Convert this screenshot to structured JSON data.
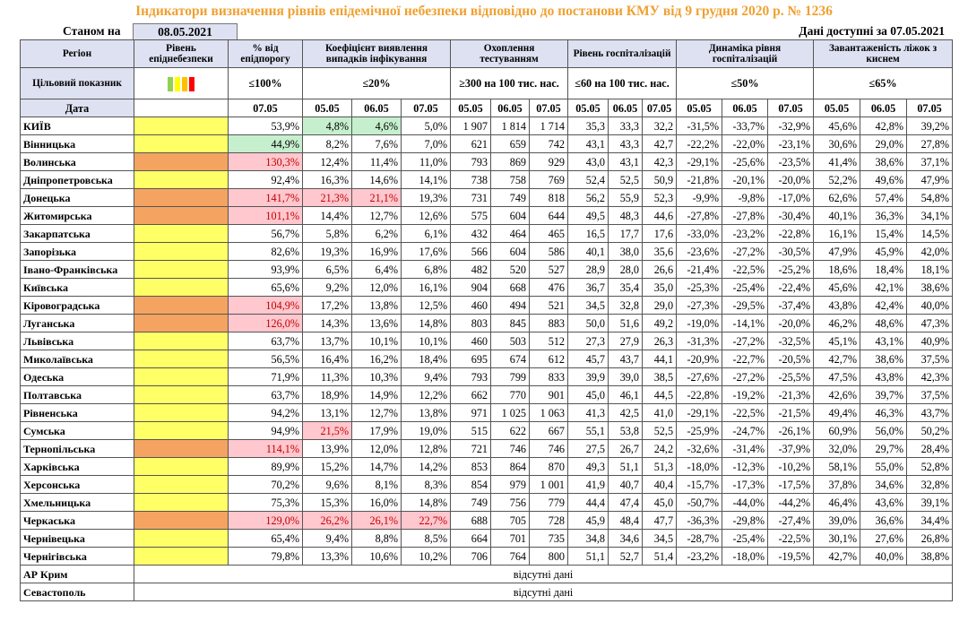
{
  "title": "Індикатори визначення рівнів епідемічної небезпеки відповідно до постанови КМУ від 9 грудня 2020 р. № 1236",
  "status_label": "Станом на",
  "status_date": "08.05.2021",
  "data_available": "Дані доступні за 07.05.2021",
  "headers": {
    "region": "Регіон",
    "level": "Рівень епіднебезпеки",
    "threshold": "% від епідпорогу",
    "detection": "Коефіцієнт виявлення випадків інфікування",
    "testing": "Охоплення тестуванням",
    "hosp": "Рівень госпіталізацій",
    "dynamics": "Динаміка рівня госпіталізацій",
    "beds": "Завантаженість ліжок з киснем"
  },
  "target": {
    "label": "Цільовий показник",
    "threshold": "≤100%",
    "detection": "≤20%",
    "testing": "≥300 на 100 тис. нас.",
    "hosp": "≤60 на 100 тис. нас.",
    "dynamics": "≤50%",
    "beds": "≤65%"
  },
  "swatch_colors": [
    "#92d050",
    "#ffff00",
    "#ffc000",
    "#ff0000"
  ],
  "dates": {
    "label": "Дата",
    "threshold": "07.05",
    "set": [
      "05.05",
      "06.05",
      "07.05"
    ]
  },
  "level_colors": {
    "yellow": "#ffff66",
    "orange": "#f4a460"
  },
  "regions": [
    {
      "name": "КИЇВ",
      "level": "yellow",
      "pct": "53,9%",
      "det": [
        "4,8%",
        "4,6%",
        "5,0%"
      ],
      "test": [
        "1 907",
        "1 814",
        "1 714"
      ],
      "hosp": [
        "35,3",
        "33,3",
        "32,2"
      ],
      "dyn": [
        "-31,5%",
        "-33,7%",
        "-32,9%"
      ],
      "beds": [
        "45,6%",
        "42,8%",
        "39,2%"
      ],
      "hl": {
        "det0": "good",
        "det1": "good"
      }
    },
    {
      "name": "Вінницька",
      "level": "yellow",
      "pct": "44,9%",
      "det": [
        "8,2%",
        "7,6%",
        "7,0%"
      ],
      "test": [
        "621",
        "659",
        "742"
      ],
      "hosp": [
        "43,1",
        "43,3",
        "42,7"
      ],
      "dyn": [
        "-22,2%",
        "-22,0%",
        "-23,1%"
      ],
      "beds": [
        "30,6%",
        "29,0%",
        "27,8%"
      ],
      "hl": {
        "pct": "good"
      }
    },
    {
      "name": "Волинська",
      "level": "orange",
      "pct": "130,3%",
      "det": [
        "12,4%",
        "11,4%",
        "11,0%"
      ],
      "test": [
        "793",
        "869",
        "929"
      ],
      "hosp": [
        "43,0",
        "43,1",
        "42,3"
      ],
      "dyn": [
        "-29,1%",
        "-25,6%",
        "-23,5%"
      ],
      "beds": [
        "41,4%",
        "38,6%",
        "37,1%"
      ],
      "hl": {
        "pct": "bad"
      }
    },
    {
      "name": "Дніпропетровська",
      "level": "yellow",
      "pct": "92,4%",
      "det": [
        "16,3%",
        "14,6%",
        "14,1%"
      ],
      "test": [
        "738",
        "758",
        "769"
      ],
      "hosp": [
        "52,4",
        "52,5",
        "50,9"
      ],
      "dyn": [
        "-21,8%",
        "-20,1%",
        "-20,0%"
      ],
      "beds": [
        "52,2%",
        "49,6%",
        "47,9%"
      ],
      "hl": {}
    },
    {
      "name": "Донецька",
      "level": "orange",
      "pct": "141,7%",
      "det": [
        "21,3%",
        "21,1%",
        "19,3%"
      ],
      "test": [
        "731",
        "749",
        "818"
      ],
      "hosp": [
        "56,2",
        "55,9",
        "52,3"
      ],
      "dyn": [
        "-9,9%",
        "-9,8%",
        "-17,0%"
      ],
      "beds": [
        "62,6%",
        "57,4%",
        "54,8%"
      ],
      "hl": {
        "pct": "bad",
        "det0": "bad",
        "det1": "bad"
      }
    },
    {
      "name": "Житомирська",
      "level": "orange",
      "pct": "101,1%",
      "det": [
        "14,4%",
        "12,7%",
        "12,6%"
      ],
      "test": [
        "575",
        "604",
        "644"
      ],
      "hosp": [
        "49,5",
        "48,3",
        "44,6"
      ],
      "dyn": [
        "-27,8%",
        "-27,8%",
        "-30,4%"
      ],
      "beds": [
        "40,1%",
        "36,3%",
        "34,1%"
      ],
      "hl": {
        "pct": "bad"
      }
    },
    {
      "name": "Закарпатська",
      "level": "yellow",
      "pct": "56,7%",
      "det": [
        "5,8%",
        "6,2%",
        "6,1%"
      ],
      "test": [
        "432",
        "464",
        "465"
      ],
      "hosp": [
        "16,5",
        "17,7",
        "17,6"
      ],
      "dyn": [
        "-33,0%",
        "-23,2%",
        "-22,8%"
      ],
      "beds": [
        "16,1%",
        "15,4%",
        "14,5%"
      ],
      "hl": {}
    },
    {
      "name": "Запорізька",
      "level": "yellow",
      "pct": "82,6%",
      "det": [
        "19,3%",
        "16,9%",
        "17,6%"
      ],
      "test": [
        "566",
        "604",
        "586"
      ],
      "hosp": [
        "40,1",
        "38,0",
        "35,6"
      ],
      "dyn": [
        "-23,6%",
        "-27,2%",
        "-30,5%"
      ],
      "beds": [
        "47,9%",
        "45,9%",
        "42,0%"
      ],
      "hl": {}
    },
    {
      "name": "Івано-Франківська",
      "level": "yellow",
      "pct": "93,9%",
      "det": [
        "6,5%",
        "6,4%",
        "6,8%"
      ],
      "test": [
        "482",
        "520",
        "527"
      ],
      "hosp": [
        "28,9",
        "28,0",
        "26,6"
      ],
      "dyn": [
        "-21,4%",
        "-22,5%",
        "-25,2%"
      ],
      "beds": [
        "18,6%",
        "18,4%",
        "18,1%"
      ],
      "hl": {}
    },
    {
      "name": "Київська",
      "level": "yellow",
      "pct": "65,6%",
      "det": [
        "9,2%",
        "12,0%",
        "16,1%"
      ],
      "test": [
        "904",
        "668",
        "476"
      ],
      "hosp": [
        "36,7",
        "35,4",
        "35,0"
      ],
      "dyn": [
        "-25,3%",
        "-25,4%",
        "-22,4%"
      ],
      "beds": [
        "45,6%",
        "42,1%",
        "38,6%"
      ],
      "hl": {}
    },
    {
      "name": "Кіровоградська",
      "level": "orange",
      "pct": "104,9%",
      "det": [
        "17,2%",
        "13,8%",
        "12,5%"
      ],
      "test": [
        "460",
        "494",
        "521"
      ],
      "hosp": [
        "34,5",
        "32,8",
        "29,0"
      ],
      "dyn": [
        "-27,3%",
        "-29,5%",
        "-37,4%"
      ],
      "beds": [
        "43,8%",
        "42,4%",
        "40,0%"
      ],
      "hl": {
        "pct": "bad"
      }
    },
    {
      "name": "Луганська",
      "level": "orange",
      "pct": "126,0%",
      "det": [
        "14,3%",
        "13,6%",
        "14,8%"
      ],
      "test": [
        "803",
        "845",
        "883"
      ],
      "hosp": [
        "50,0",
        "51,6",
        "49,2"
      ],
      "dyn": [
        "-19,0%",
        "-14,1%",
        "-20,0%"
      ],
      "beds": [
        "46,2%",
        "48,6%",
        "47,3%"
      ],
      "hl": {
        "pct": "bad"
      }
    },
    {
      "name": "Львівська",
      "level": "yellow",
      "pct": "63,7%",
      "det": [
        "13,7%",
        "10,1%",
        "10,1%"
      ],
      "test": [
        "460",
        "503",
        "512"
      ],
      "hosp": [
        "27,3",
        "27,9",
        "26,3"
      ],
      "dyn": [
        "-31,3%",
        "-27,2%",
        "-32,5%"
      ],
      "beds": [
        "45,1%",
        "43,1%",
        "40,9%"
      ],
      "hl": {}
    },
    {
      "name": "Миколаївська",
      "level": "yellow",
      "pct": "56,5%",
      "det": [
        "16,4%",
        "16,2%",
        "18,4%"
      ],
      "test": [
        "695",
        "674",
        "612"
      ],
      "hosp": [
        "45,7",
        "43,7",
        "44,1"
      ],
      "dyn": [
        "-20,9%",
        "-22,7%",
        "-20,5%"
      ],
      "beds": [
        "42,7%",
        "38,6%",
        "37,5%"
      ],
      "hl": {}
    },
    {
      "name": "Одеська",
      "level": "yellow",
      "pct": "71,9%",
      "det": [
        "11,3%",
        "10,3%",
        "9,4%"
      ],
      "test": [
        "793",
        "799",
        "833"
      ],
      "hosp": [
        "39,9",
        "39,0",
        "38,5"
      ],
      "dyn": [
        "-27,6%",
        "-27,2%",
        "-25,5%"
      ],
      "beds": [
        "47,5%",
        "43,8%",
        "42,3%"
      ],
      "hl": {}
    },
    {
      "name": "Полтавська",
      "level": "yellow",
      "pct": "63,7%",
      "det": [
        "18,9%",
        "14,9%",
        "12,2%"
      ],
      "test": [
        "662",
        "770",
        "901"
      ],
      "hosp": [
        "45,0",
        "46,1",
        "44,5"
      ],
      "dyn": [
        "-22,8%",
        "-19,2%",
        "-21,3%"
      ],
      "beds": [
        "42,6%",
        "39,7%",
        "37,5%"
      ],
      "hl": {}
    },
    {
      "name": "Рівненська",
      "level": "yellow",
      "pct": "94,2%",
      "det": [
        "13,1%",
        "12,7%",
        "13,8%"
      ],
      "test": [
        "971",
        "1 025",
        "1 063"
      ],
      "hosp": [
        "41,3",
        "42,5",
        "41,0"
      ],
      "dyn": [
        "-29,1%",
        "-22,5%",
        "-21,5%"
      ],
      "beds": [
        "49,4%",
        "46,3%",
        "43,7%"
      ],
      "hl": {}
    },
    {
      "name": "Сумська",
      "level": "yellow",
      "pct": "94,9%",
      "det": [
        "21,5%",
        "17,9%",
        "19,0%"
      ],
      "test": [
        "515",
        "622",
        "667"
      ],
      "hosp": [
        "55,1",
        "53,8",
        "52,5"
      ],
      "dyn": [
        "-25,9%",
        "-24,7%",
        "-26,1%"
      ],
      "beds": [
        "60,9%",
        "56,0%",
        "50,2%"
      ],
      "hl": {
        "det0": "bad"
      }
    },
    {
      "name": "Тернопільська",
      "level": "orange",
      "pct": "114,1%",
      "det": [
        "13,9%",
        "12,0%",
        "12,8%"
      ],
      "test": [
        "721",
        "746",
        "746"
      ],
      "hosp": [
        "27,5",
        "26,7",
        "24,2"
      ],
      "dyn": [
        "-32,6%",
        "-31,4%",
        "-37,9%"
      ],
      "beds": [
        "32,0%",
        "29,7%",
        "28,4%"
      ],
      "hl": {
        "pct": "bad"
      }
    },
    {
      "name": "Харківська",
      "level": "yellow",
      "pct": "89,9%",
      "det": [
        "15,2%",
        "14,7%",
        "14,2%"
      ],
      "test": [
        "853",
        "864",
        "870"
      ],
      "hosp": [
        "49,3",
        "51,1",
        "51,3"
      ],
      "dyn": [
        "-18,0%",
        "-12,3%",
        "-10,2%"
      ],
      "beds": [
        "58,1%",
        "55,0%",
        "52,8%"
      ],
      "hl": {}
    },
    {
      "name": "Херсонська",
      "level": "yellow",
      "pct": "70,2%",
      "det": [
        "9,6%",
        "8,1%",
        "8,3%"
      ],
      "test": [
        "854",
        "979",
        "1 001"
      ],
      "hosp": [
        "41,9",
        "40,7",
        "40,4"
      ],
      "dyn": [
        "-15,7%",
        "-17,3%",
        "-17,5%"
      ],
      "beds": [
        "37,8%",
        "34,6%",
        "32,8%"
      ],
      "hl": {}
    },
    {
      "name": "Хмельницька",
      "level": "yellow",
      "pct": "75,3%",
      "det": [
        "15,3%",
        "16,0%",
        "14,8%"
      ],
      "test": [
        "749",
        "756",
        "779"
      ],
      "hosp": [
        "44,4",
        "47,4",
        "45,0"
      ],
      "dyn": [
        "-50,7%",
        "-44,0%",
        "-44,2%"
      ],
      "beds": [
        "46,4%",
        "43,6%",
        "39,1%"
      ],
      "hl": {}
    },
    {
      "name": "Черкаська",
      "level": "orange",
      "pct": "129,0%",
      "det": [
        "26,2%",
        "26,1%",
        "22,7%"
      ],
      "test": [
        "688",
        "705",
        "728"
      ],
      "hosp": [
        "45,9",
        "48,4",
        "47,7"
      ],
      "dyn": [
        "-36,3%",
        "-29,8%",
        "-27,4%"
      ],
      "beds": [
        "39,0%",
        "36,6%",
        "34,4%"
      ],
      "hl": {
        "pct": "bad",
        "det0": "bad",
        "det1": "bad",
        "det2": "bad"
      }
    },
    {
      "name": "Чернівецька",
      "level": "yellow",
      "pct": "65,4%",
      "det": [
        "9,4%",
        "8,8%",
        "8,5%"
      ],
      "test": [
        "664",
        "701",
        "735"
      ],
      "hosp": [
        "34,8",
        "34,6",
        "34,5"
      ],
      "dyn": [
        "-28,7%",
        "-25,4%",
        "-22,5%"
      ],
      "beds": [
        "30,1%",
        "27,6%",
        "26,8%"
      ],
      "hl": {}
    },
    {
      "name": "Чернігівська",
      "level": "yellow",
      "pct": "79,8%",
      "det": [
        "13,3%",
        "10,6%",
        "10,2%"
      ],
      "test": [
        "706",
        "764",
        "800"
      ],
      "hosp": [
        "51,1",
        "52,7",
        "51,4"
      ],
      "dyn": [
        "-23,2%",
        "-18,0%",
        "-19,5%"
      ],
      "beds": [
        "42,7%",
        "40,0%",
        "38,8%"
      ],
      "hl": {}
    }
  ],
  "no_data_regions": [
    {
      "name": "АР Крим",
      "text": "відсутні дані"
    },
    {
      "name": "Севастополь",
      "text": "відсутні дані"
    }
  ]
}
